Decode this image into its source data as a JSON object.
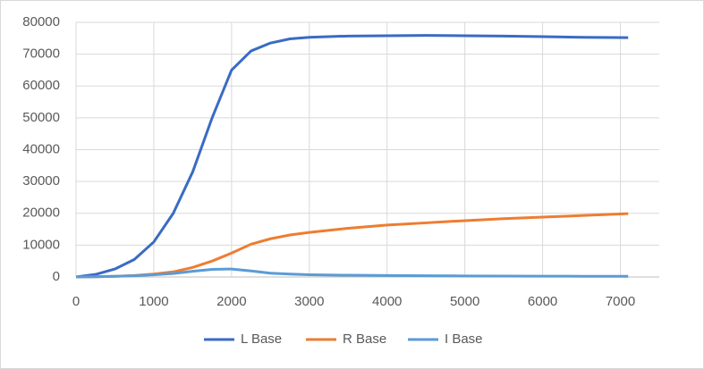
{
  "chart_data": {
    "type": "line",
    "x": [
      0,
      250,
      500,
      750,
      1000,
      1250,
      1500,
      1750,
      2000,
      2250,
      2500,
      2750,
      3000,
      3500,
      4000,
      4500,
      5000,
      5500,
      6000,
      6500,
      7100
    ],
    "series": [
      {
        "name": "L Base",
        "color": "#3a6bc4",
        "values": [
          0,
          800,
          2500,
          5500,
          11000,
          20000,
          33000,
          50000,
          65000,
          71000,
          73500,
          74800,
          75300,
          75700,
          75800,
          75900,
          75800,
          75700,
          75500,
          75300,
          75200
        ]
      },
      {
        "name": "R Base",
        "color": "#ed7d31",
        "values": [
          0,
          80,
          200,
          450,
          900,
          1600,
          3000,
          5000,
          7500,
          10300,
          12000,
          13200,
          14000,
          15300,
          16300,
          17000,
          17700,
          18300,
          18800,
          19300,
          19900
        ]
      },
      {
        "name": "I Base",
        "color": "#5b9bd5",
        "values": [
          0,
          80,
          200,
          400,
          700,
          1100,
          1800,
          2400,
          2500,
          1900,
          1200,
          900,
          700,
          550,
          450,
          380,
          330,
          280,
          250,
          220,
          200
        ]
      }
    ],
    "xlim": [
      0,
      7500
    ],
    "xticks": [
      0,
      1000,
      2000,
      3000,
      4000,
      5000,
      6000,
      7000
    ],
    "ylim": [
      0,
      80000
    ],
    "yticks": [
      0,
      10000,
      20000,
      30000,
      40000,
      50000,
      60000,
      70000,
      80000
    ],
    "grid": true,
    "legend": "bottom"
  }
}
